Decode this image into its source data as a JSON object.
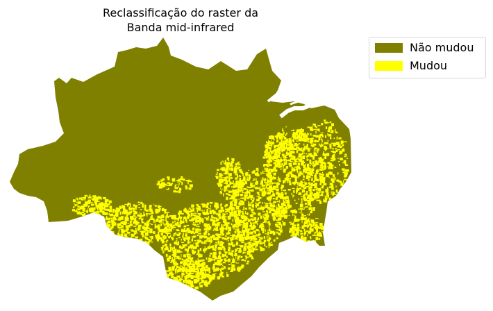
{
  "title": "Reclassificação do raster da\nBanda mid-infrared",
  "title_lines": [
    "Reclassificação do raster da",
    "Banda mid-infrared"
  ],
  "legend": {
    "items": [
      {
        "label": "Não mudou",
        "color": "#808000"
      },
      {
        "label": "Mudou",
        "color": "#ffff00"
      }
    ]
  },
  "colors": {
    "unchanged": "#808000",
    "changed": "#ffff00",
    "background": "#ffffff"
  }
}
